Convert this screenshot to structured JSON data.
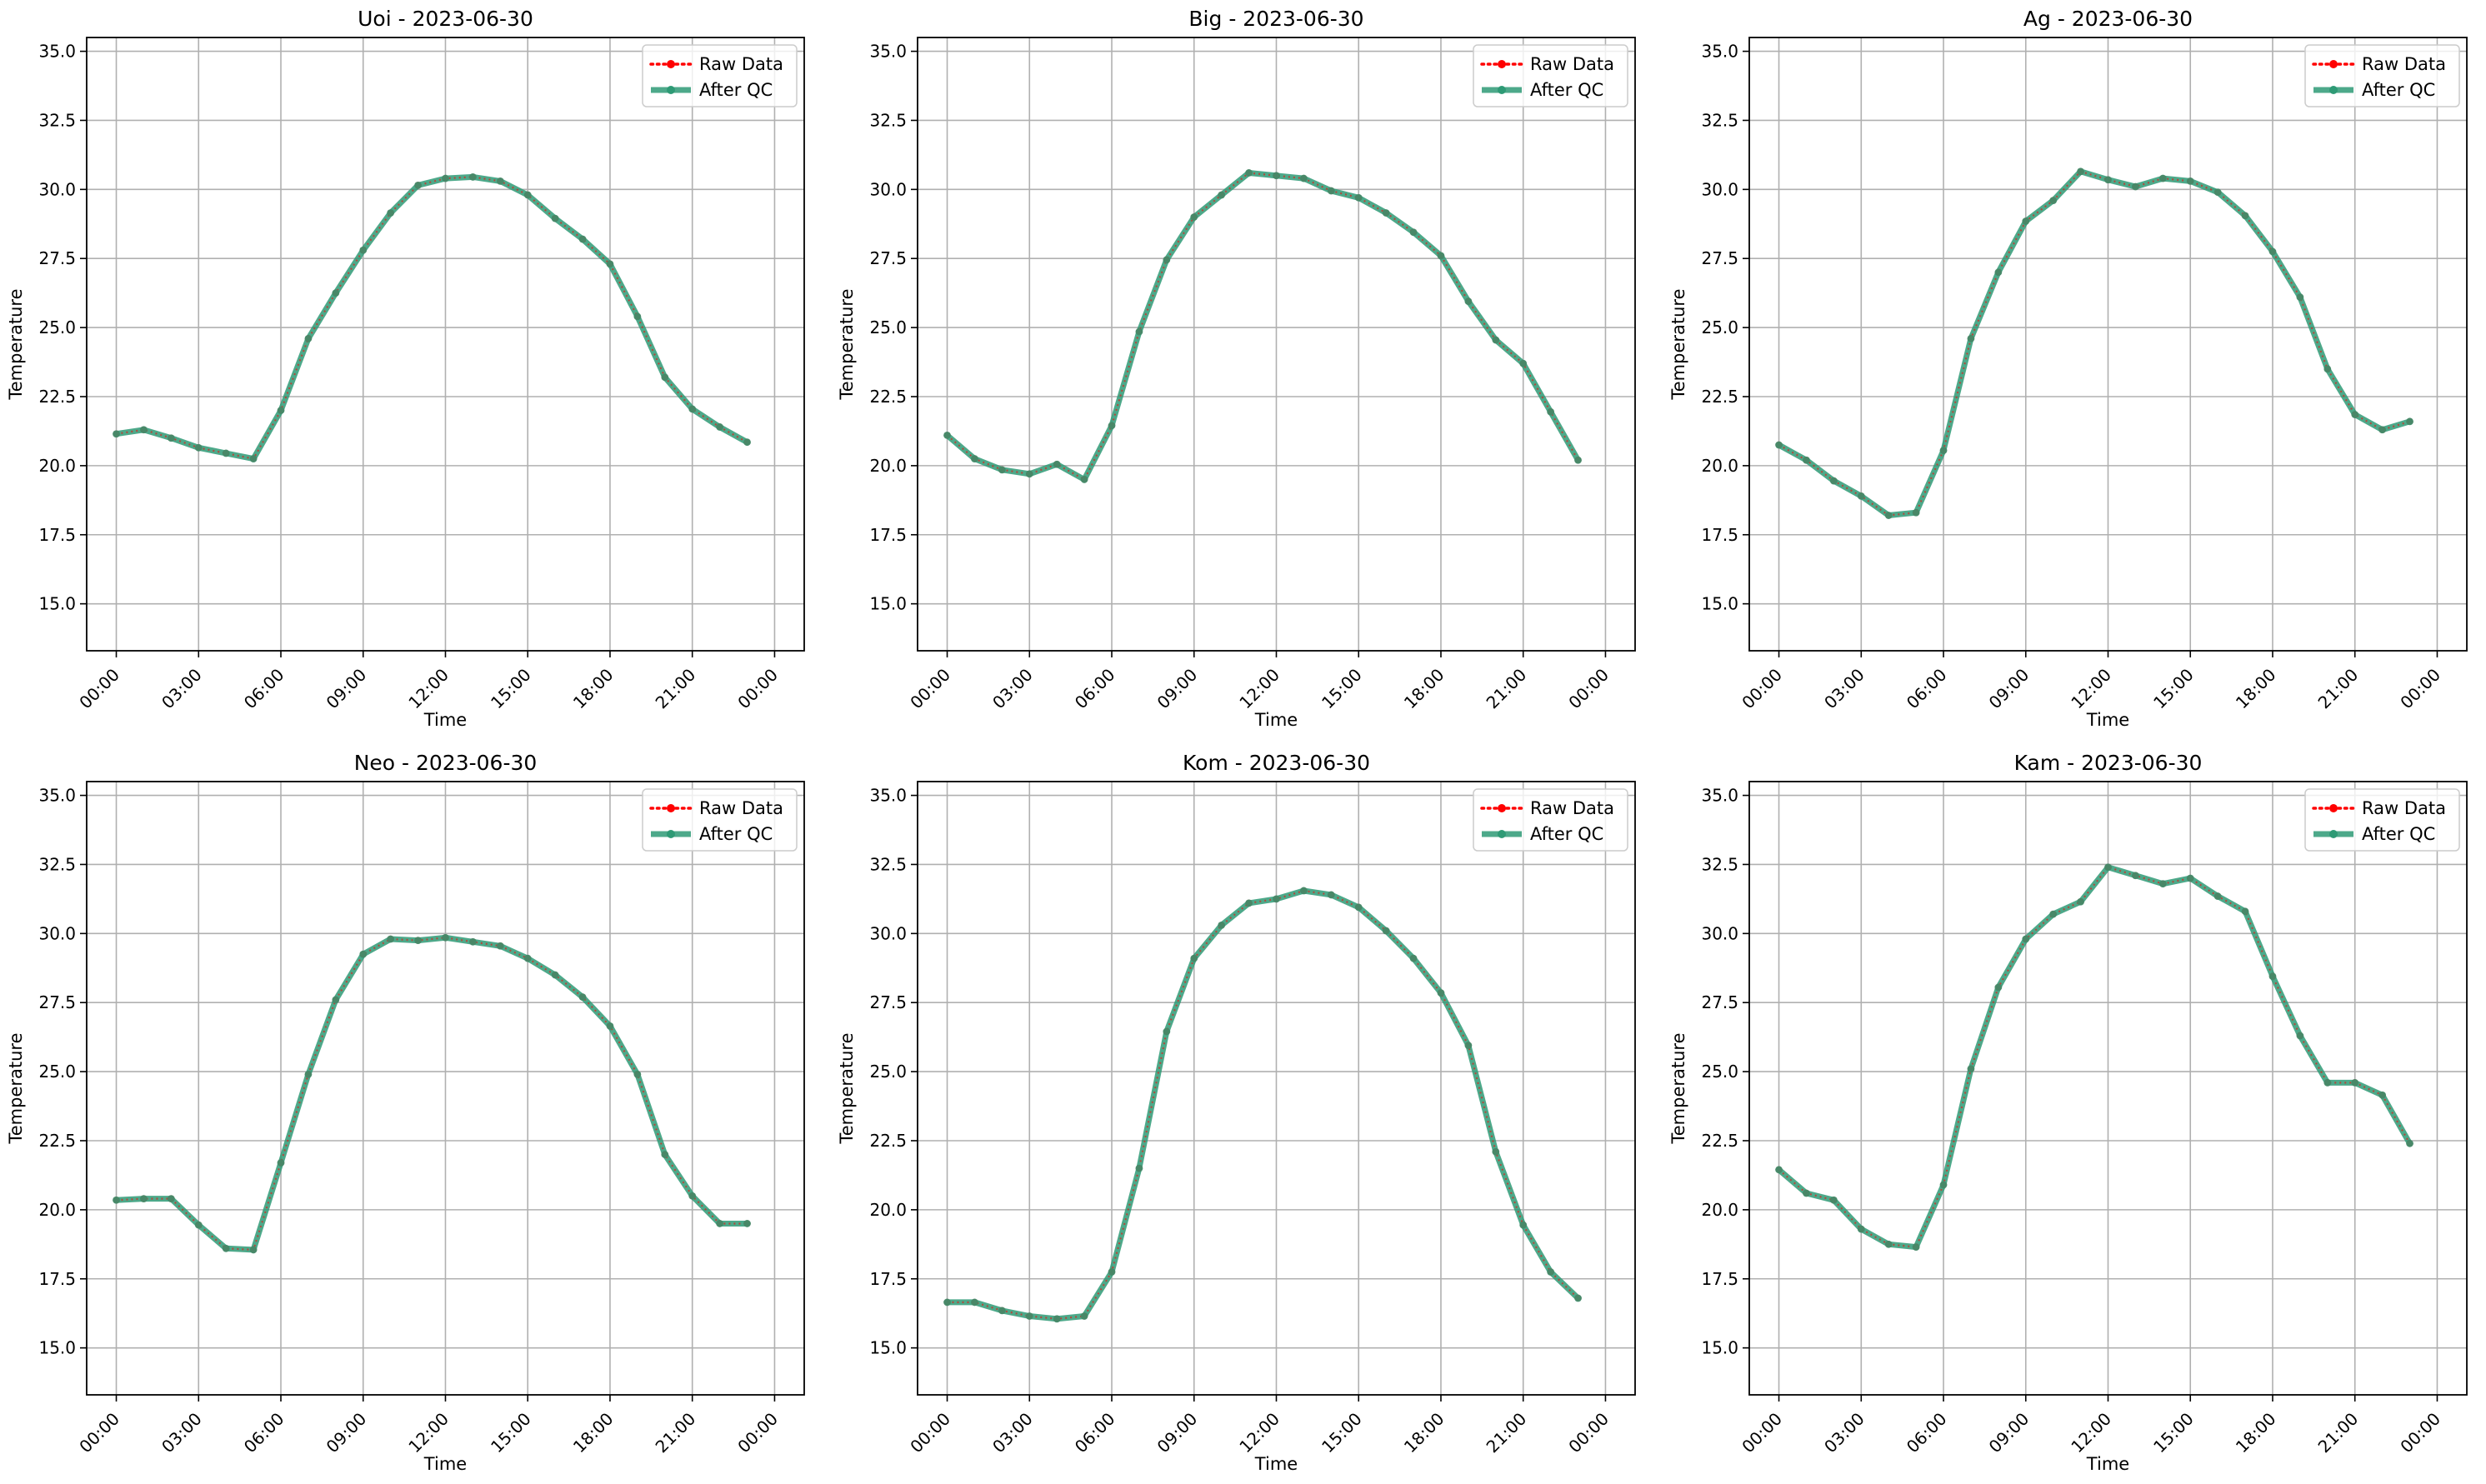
{
  "figure": {
    "background": "#ffffff"
  },
  "colors": {
    "raw": "#ff0000",
    "qc": "#2e9a75",
    "grid": "#b0b0b0",
    "axis": "#000000",
    "legend_border": "#cccccc"
  },
  "legend": {
    "placement": "top-right",
    "raw_label": "Raw Data",
    "qc_label": "After QC"
  },
  "chart_data": [
    {
      "type": "line",
      "title": "Uoi - 2023-06-30",
      "xlabel": "Time",
      "ylabel": "Temperature",
      "ylim": [
        13.3,
        35.5
      ],
      "xlim": [
        "2023-06-30 00:00",
        "2023-07-01 00:00"
      ],
      "grid": true,
      "x": [
        "00:00",
        "01:00",
        "02:00",
        "03:00",
        "04:00",
        "05:00",
        "06:00",
        "07:00",
        "08:00",
        "09:00",
        "10:00",
        "11:00",
        "12:00",
        "13:00",
        "14:00",
        "15:00",
        "16:00",
        "17:00",
        "18:00",
        "19:00",
        "20:00",
        "21:00",
        "22:00",
        "23:00"
      ],
      "x_ticks": [
        "00:00",
        "03:00",
        "06:00",
        "09:00",
        "12:00",
        "15:00",
        "18:00",
        "21:00",
        "00:00"
      ],
      "y_ticks": [
        "15.0",
        "17.5",
        "20.0",
        "22.5",
        "25.0",
        "27.5",
        "30.0",
        "32.5",
        "35.0"
      ],
      "series": [
        {
          "name": "Raw Data",
          "values": [
            21.15,
            21.3,
            21.0,
            20.65,
            20.45,
            20.25,
            22.0,
            24.6,
            26.25,
            27.8,
            29.15,
            30.15,
            30.4,
            30.45,
            30.3,
            29.8,
            28.95,
            28.2,
            27.3,
            25.4,
            23.2,
            22.05,
            21.4,
            20.85
          ]
        },
        {
          "name": "After QC",
          "values": [
            21.15,
            21.3,
            21.0,
            20.65,
            20.45,
            20.25,
            22.0,
            24.6,
            26.25,
            27.8,
            29.15,
            30.15,
            30.4,
            30.45,
            30.3,
            29.8,
            28.95,
            28.2,
            27.3,
            25.4,
            23.2,
            22.05,
            21.4,
            20.85
          ]
        }
      ]
    },
    {
      "type": "line",
      "title": "Big - 2023-06-30",
      "xlabel": "Time",
      "ylabel": "Temperature",
      "ylim": [
        13.3,
        35.5
      ],
      "xlim": [
        "2023-06-30 00:00",
        "2023-07-01 00:00"
      ],
      "grid": true,
      "x": [
        "00:00",
        "01:00",
        "02:00",
        "03:00",
        "04:00",
        "05:00",
        "06:00",
        "07:00",
        "08:00",
        "09:00",
        "10:00",
        "11:00",
        "12:00",
        "13:00",
        "14:00",
        "15:00",
        "16:00",
        "17:00",
        "18:00",
        "19:00",
        "20:00",
        "21:00",
        "22:00",
        "23:00"
      ],
      "x_ticks": [
        "00:00",
        "03:00",
        "06:00",
        "09:00",
        "12:00",
        "15:00",
        "18:00",
        "21:00",
        "00:00"
      ],
      "y_ticks": [
        "15.0",
        "17.5",
        "20.0",
        "22.5",
        "25.0",
        "27.5",
        "30.0",
        "32.5",
        "35.0"
      ],
      "series": [
        {
          "name": "Raw Data",
          "values": [
            21.1,
            20.25,
            19.85,
            19.7,
            20.05,
            19.5,
            21.45,
            24.85,
            27.45,
            29.0,
            29.8,
            30.6,
            30.5,
            30.4,
            29.95,
            29.7,
            29.15,
            28.45,
            27.6,
            25.95,
            24.55,
            23.7,
            21.95,
            20.2
          ]
        },
        {
          "name": "After QC",
          "values": [
            21.1,
            20.25,
            19.85,
            19.7,
            20.05,
            19.5,
            21.45,
            24.85,
            27.45,
            29.0,
            29.8,
            30.6,
            30.5,
            30.4,
            29.95,
            29.7,
            29.15,
            28.45,
            27.6,
            25.95,
            24.55,
            23.7,
            21.95,
            20.2
          ]
        }
      ]
    },
    {
      "type": "line",
      "title": "Ag - 2023-06-30",
      "xlabel": "Time",
      "ylabel": "Temperature",
      "ylim": [
        13.3,
        35.5
      ],
      "xlim": [
        "2023-06-30 00:00",
        "2023-07-01 00:00"
      ],
      "grid": true,
      "x": [
        "00:00",
        "01:00",
        "02:00",
        "03:00",
        "04:00",
        "05:00",
        "06:00",
        "07:00",
        "08:00",
        "09:00",
        "10:00",
        "11:00",
        "12:00",
        "13:00",
        "14:00",
        "15:00",
        "16:00",
        "17:00",
        "18:00",
        "19:00",
        "20:00",
        "21:00",
        "22:00",
        "23:00"
      ],
      "x_ticks": [
        "00:00",
        "03:00",
        "06:00",
        "09:00",
        "12:00",
        "15:00",
        "18:00",
        "21:00",
        "00:00"
      ],
      "y_ticks": [
        "15.0",
        "17.5",
        "20.0",
        "22.5",
        "25.0",
        "27.5",
        "30.0",
        "32.5",
        "35.0"
      ],
      "series": [
        {
          "name": "Raw Data",
          "values": [
            20.75,
            20.2,
            19.45,
            18.9,
            18.2,
            18.3,
            20.55,
            24.6,
            27.0,
            28.85,
            29.6,
            30.65,
            30.35,
            30.1,
            30.4,
            30.3,
            29.9,
            29.05,
            27.75,
            26.1,
            23.5,
            21.85,
            21.3,
            21.6
          ]
        },
        {
          "name": "After QC",
          "values": [
            20.75,
            20.2,
            19.45,
            18.9,
            18.2,
            18.3,
            20.55,
            24.6,
            27.0,
            28.85,
            29.6,
            30.65,
            30.35,
            30.1,
            30.4,
            30.3,
            29.9,
            29.05,
            27.75,
            26.1,
            23.5,
            21.85,
            21.3,
            21.6
          ]
        }
      ]
    },
    {
      "type": "line",
      "title": "Neo - 2023-06-30",
      "xlabel": "Time",
      "ylabel": "Temperature",
      "ylim": [
        13.3,
        35.5
      ],
      "xlim": [
        "2023-06-30 00:00",
        "2023-07-01 00:00"
      ],
      "grid": true,
      "x": [
        "00:00",
        "01:00",
        "02:00",
        "03:00",
        "04:00",
        "05:00",
        "06:00",
        "07:00",
        "08:00",
        "09:00",
        "10:00",
        "11:00",
        "12:00",
        "13:00",
        "14:00",
        "15:00",
        "16:00",
        "17:00",
        "18:00",
        "19:00",
        "20:00",
        "21:00",
        "22:00",
        "23:00"
      ],
      "x_ticks": [
        "00:00",
        "03:00",
        "06:00",
        "09:00",
        "12:00",
        "15:00",
        "18:00",
        "21:00",
        "00:00"
      ],
      "y_ticks": [
        "15.0",
        "17.5",
        "20.0",
        "22.5",
        "25.0",
        "27.5",
        "30.0",
        "32.5",
        "35.0"
      ],
      "series": [
        {
          "name": "Raw Data",
          "values": [
            20.35,
            20.4,
            20.4,
            19.45,
            18.6,
            18.55,
            21.7,
            24.9,
            27.6,
            29.25,
            29.8,
            29.75,
            29.85,
            29.7,
            29.55,
            29.1,
            28.5,
            27.7,
            26.65,
            24.9,
            22.0,
            20.5,
            19.5,
            19.5
          ]
        },
        {
          "name": "After QC",
          "values": [
            20.35,
            20.4,
            20.4,
            19.45,
            18.6,
            18.55,
            21.7,
            24.9,
            27.6,
            29.25,
            29.8,
            29.75,
            29.85,
            29.7,
            29.55,
            29.1,
            28.5,
            27.7,
            26.65,
            24.9,
            22.0,
            20.5,
            19.5,
            19.5
          ]
        }
      ]
    },
    {
      "type": "line",
      "title": "Kom - 2023-06-30",
      "xlabel": "Time",
      "ylabel": "Temperature",
      "ylim": [
        13.3,
        35.5
      ],
      "xlim": [
        "2023-06-30 00:00",
        "2023-07-01 00:00"
      ],
      "grid": true,
      "x": [
        "00:00",
        "01:00",
        "02:00",
        "03:00",
        "04:00",
        "05:00",
        "06:00",
        "07:00",
        "08:00",
        "09:00",
        "10:00",
        "11:00",
        "12:00",
        "13:00",
        "14:00",
        "15:00",
        "16:00",
        "17:00",
        "18:00",
        "19:00",
        "20:00",
        "21:00",
        "22:00",
        "23:00"
      ],
      "x_ticks": [
        "00:00",
        "03:00",
        "06:00",
        "09:00",
        "12:00",
        "15:00",
        "18:00",
        "21:00",
        "00:00"
      ],
      "y_ticks": [
        "15.0",
        "17.5",
        "20.0",
        "22.5",
        "25.0",
        "27.5",
        "30.0",
        "32.5",
        "35.0"
      ],
      "series": [
        {
          "name": "Raw Data",
          "values": [
            16.65,
            16.65,
            16.35,
            16.15,
            16.05,
            16.15,
            17.75,
            21.5,
            26.45,
            29.1,
            30.3,
            31.1,
            31.25,
            31.55,
            31.4,
            30.95,
            30.1,
            29.1,
            27.85,
            25.95,
            22.1,
            19.45,
            17.75,
            16.8
          ]
        },
        {
          "name": "After QC",
          "values": [
            16.65,
            16.65,
            16.35,
            16.15,
            16.05,
            16.15,
            17.75,
            21.5,
            26.45,
            29.1,
            30.3,
            31.1,
            31.25,
            31.55,
            31.4,
            30.95,
            30.1,
            29.1,
            27.85,
            25.95,
            22.1,
            19.45,
            17.75,
            16.8
          ]
        }
      ]
    },
    {
      "type": "line",
      "title": "Kam - 2023-06-30",
      "xlabel": "Time",
      "ylabel": "Temperature",
      "ylim": [
        13.3,
        35.5
      ],
      "xlim": [
        "2023-06-30 00:00",
        "2023-07-01 00:00"
      ],
      "grid": true,
      "x": [
        "00:00",
        "01:00",
        "02:00",
        "03:00",
        "04:00",
        "05:00",
        "06:00",
        "07:00",
        "08:00",
        "09:00",
        "10:00",
        "11:00",
        "12:00",
        "13:00",
        "14:00",
        "15:00",
        "16:00",
        "17:00",
        "18:00",
        "19:00",
        "20:00",
        "21:00",
        "22:00",
        "23:00"
      ],
      "x_ticks": [
        "00:00",
        "03:00",
        "06:00",
        "09:00",
        "12:00",
        "15:00",
        "18:00",
        "21:00",
        "00:00"
      ],
      "y_ticks": [
        "15.0",
        "17.5",
        "20.0",
        "22.5",
        "25.0",
        "27.5",
        "30.0",
        "32.5",
        "35.0"
      ],
      "series": [
        {
          "name": "Raw Data",
          "values": [
            21.45,
            20.6,
            20.35,
            19.3,
            18.75,
            18.65,
            20.9,
            25.1,
            28.05,
            29.8,
            30.7,
            31.15,
            32.4,
            32.1,
            31.8,
            32.0,
            31.35,
            30.8,
            28.45,
            26.3,
            24.6,
            24.6,
            24.15,
            22.4
          ]
        },
        {
          "name": "After QC",
          "values": [
            21.45,
            20.6,
            20.35,
            19.3,
            18.75,
            18.65,
            20.9,
            25.1,
            28.05,
            29.8,
            30.7,
            31.15,
            32.4,
            32.1,
            31.8,
            32.0,
            31.35,
            30.8,
            28.45,
            26.3,
            24.6,
            24.6,
            24.15,
            22.4
          ]
        }
      ]
    }
  ]
}
